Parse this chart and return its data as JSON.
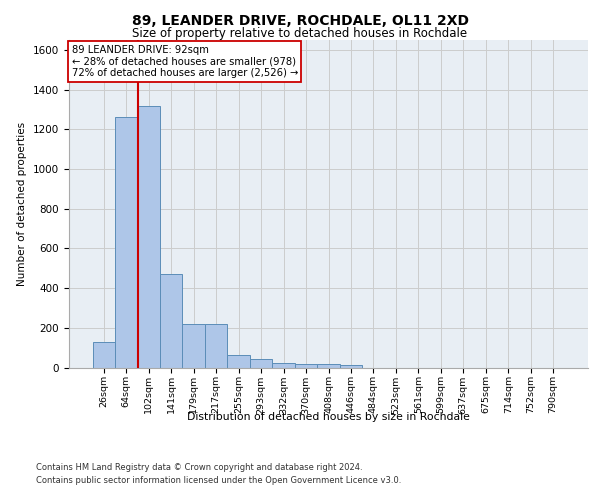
{
  "title1": "89, LEANDER DRIVE, ROCHDALE, OL11 2XD",
  "title2": "Size of property relative to detached houses in Rochdale",
  "xlabel": "Distribution of detached houses by size in Rochdale",
  "ylabel": "Number of detached properties",
  "bar_labels": [
    "26sqm",
    "64sqm",
    "102sqm",
    "141sqm",
    "179sqm",
    "217sqm",
    "255sqm",
    "293sqm",
    "332sqm",
    "370sqm",
    "408sqm",
    "446sqm",
    "484sqm",
    "523sqm",
    "561sqm",
    "599sqm",
    "637sqm",
    "675sqm",
    "714sqm",
    "752sqm",
    "790sqm"
  ],
  "bar_values": [
    130,
    1260,
    1320,
    470,
    220,
    220,
    65,
    45,
    25,
    20,
    20,
    15,
    0,
    0,
    0,
    0,
    0,
    0,
    0,
    0,
    0
  ],
  "bar_color": "#aec6e8",
  "bar_edge_color": "#5b8db8",
  "vline_color": "#cc0000",
  "annotation_text": "89 LEANDER DRIVE: 92sqm\n← 28% of detached houses are smaller (978)\n72% of detached houses are larger (2,526) →",
  "annotation_box_color": "#ffffff",
  "annotation_box_edge": "#cc0000",
  "ylim": [
    0,
    1650
  ],
  "yticks": [
    0,
    200,
    400,
    600,
    800,
    1000,
    1200,
    1400,
    1600
  ],
  "grid_color": "#cccccc",
  "plot_bg_color": "#e8eef4",
  "footer1": "Contains HM Land Registry data © Crown copyright and database right 2024.",
  "footer2": "Contains public sector information licensed under the Open Government Licence v3.0."
}
